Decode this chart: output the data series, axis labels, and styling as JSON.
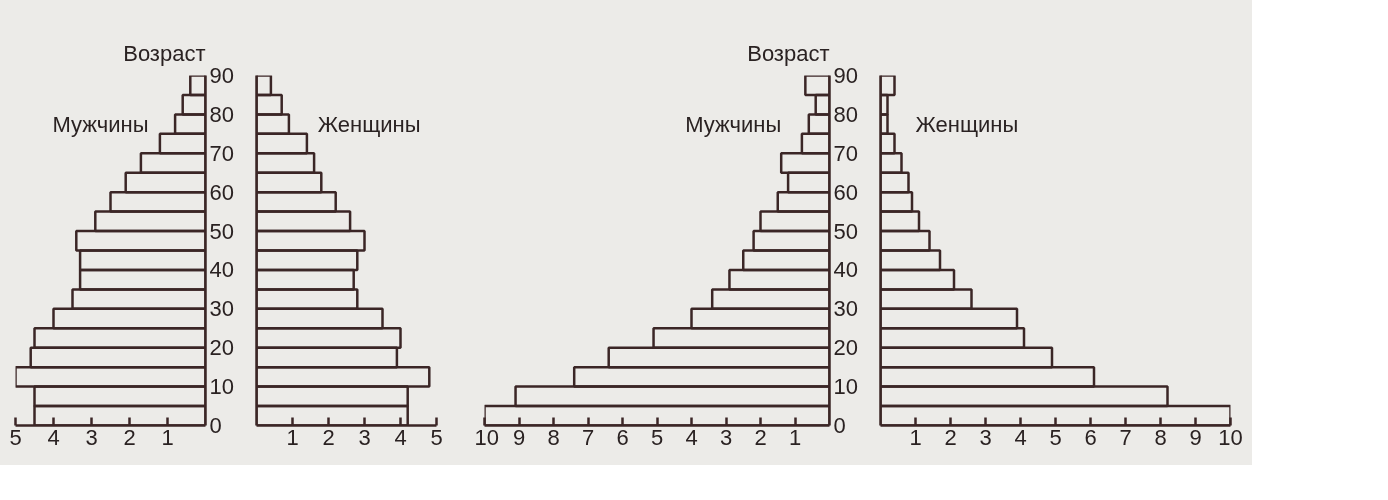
{
  "chart_data": [
    {
      "type": "histogram",
      "orientation": "horizontal",
      "ylabel": "Возраст",
      "bins": [
        0,
        5,
        10,
        15,
        20,
        25,
        30,
        35,
        40,
        45,
        50,
        55,
        60,
        65,
        70,
        75,
        80,
        85,
        90
      ],
      "series": [
        {
          "name": "Мужчины",
          "color": "#3b2626",
          "values": [
            4.5,
            4.5,
            5.0,
            4.6,
            4.5,
            4.0,
            3.5,
            3.3,
            3.3,
            3.4,
            2.9,
            2.5,
            2.1,
            1.7,
            1.2,
            0.8,
            0.6,
            0.4
          ]
        }
      ],
      "xlim": [
        5,
        0
      ],
      "xticks": [
        5,
        4,
        3,
        2,
        1
      ],
      "ylim": [
        0,
        90
      ],
      "yticks": [
        0,
        10,
        20,
        30,
        40,
        50,
        60,
        70,
        80,
        90
      ]
    },
    {
      "type": "histogram",
      "orientation": "horizontal",
      "bins": [
        0,
        5,
        10,
        15,
        20,
        25,
        30,
        35,
        40,
        45,
        50,
        55,
        60,
        65,
        70,
        75,
        80,
        85,
        90
      ],
      "series": [
        {
          "name": "Женщины",
          "color": "#3b2626",
          "values": [
            4.2,
            4.2,
            4.8,
            3.9,
            4.0,
            3.5,
            2.8,
            2.7,
            2.8,
            3.0,
            2.6,
            2.2,
            1.8,
            1.6,
            1.4,
            0.9,
            0.7,
            0.4
          ]
        }
      ],
      "xlim": [
        0,
        5
      ],
      "xticks": [
        1,
        2,
        3,
        4,
        5
      ],
      "ylim": [
        0,
        90
      ],
      "yticks": [
        0,
        10,
        20,
        30,
        40,
        50,
        60,
        70,
        80,
        90
      ],
      "tick_labels": "x"
    },
    {
      "type": "histogram",
      "orientation": "horizontal",
      "ylabel": "Возраст",
      "bins": [
        0,
        5,
        10,
        15,
        20,
        25,
        30,
        35,
        40,
        45,
        50,
        55,
        60,
        65,
        70,
        75,
        80,
        85,
        90
      ],
      "series": [
        {
          "name": "Мужчины",
          "color": "#3b2626",
          "values": [
            10.0,
            9.1,
            7.4,
            6.4,
            5.1,
            4.0,
            3.4,
            2.9,
            2.5,
            2.2,
            2.0,
            1.5,
            1.2,
            1.4,
            0.8,
            0.6,
            0.4,
            0.7
          ]
        }
      ],
      "xlim": [
        10,
        0
      ],
      "xticks": [
        10,
        9,
        8,
        7,
        6,
        5,
        4,
        3,
        2,
        1
      ],
      "ylim": [
        0,
        90
      ],
      "yticks": [
        0,
        10,
        20,
        30,
        40,
        50,
        60,
        70,
        80,
        90
      ]
    },
    {
      "type": "histogram",
      "orientation": "horizontal",
      "bins": [
        0,
        5,
        10,
        15,
        20,
        25,
        30,
        35,
        40,
        45,
        50,
        55,
        60,
        65,
        70,
        75,
        80,
        85,
        90
      ],
      "series": [
        {
          "name": "Женщины",
          "color": "#3b2626",
          "values": [
            10.0,
            8.2,
            6.1,
            4.9,
            4.1,
            3.9,
            2.6,
            2.1,
            1.7,
            1.4,
            1.1,
            0.9,
            0.8,
            0.6,
            0.4,
            0.2,
            0.2,
            0.4
          ]
        }
      ],
      "xlim": [
        0,
        10
      ],
      "xticks": [
        1,
        2,
        3,
        4,
        5,
        6,
        7,
        8,
        9,
        10
      ],
      "ylim": [
        0,
        90
      ],
      "yticks": [
        0,
        10,
        20,
        30,
        40,
        50,
        60,
        70,
        80,
        90
      ],
      "tick_labels": "x"
    }
  ]
}
